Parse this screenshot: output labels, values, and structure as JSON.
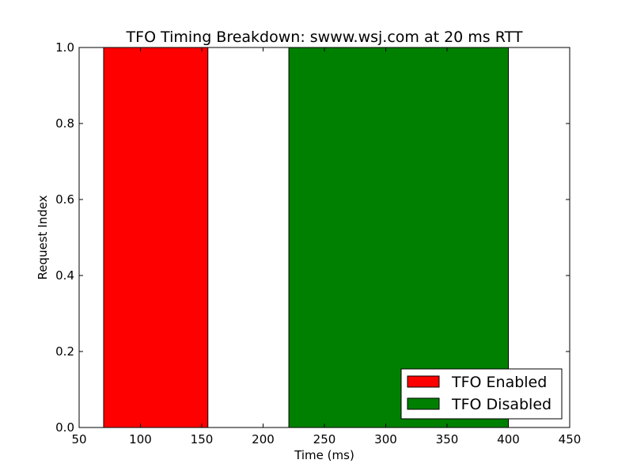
{
  "chart_data": {
    "type": "bar",
    "title": "TFO Timing Breakdown: swww.wsj.com at 20 ms RTT",
    "xlabel": "Time (ms)",
    "ylabel": "Request Index",
    "xlim": [
      50,
      450
    ],
    "ylim": [
      0.0,
      1.0
    ],
    "x_ticks": [
      "50",
      "100",
      "150",
      "200",
      "250",
      "300",
      "350",
      "400",
      "450"
    ],
    "y_ticks": [
      "0.0",
      "0.2",
      "0.4",
      "0.6",
      "0.8",
      "1.0"
    ],
    "grid": false,
    "legend_position": "lower-right",
    "series": [
      {
        "name": "TFO Enabled",
        "color": "#ff0000",
        "request_index": 0,
        "start": 70,
        "end": 155,
        "height": 1.0
      },
      {
        "name": "TFO Disabled",
        "color": "#008000",
        "request_index": 0,
        "start": 221,
        "end": 400,
        "height": 1.0
      }
    ]
  }
}
